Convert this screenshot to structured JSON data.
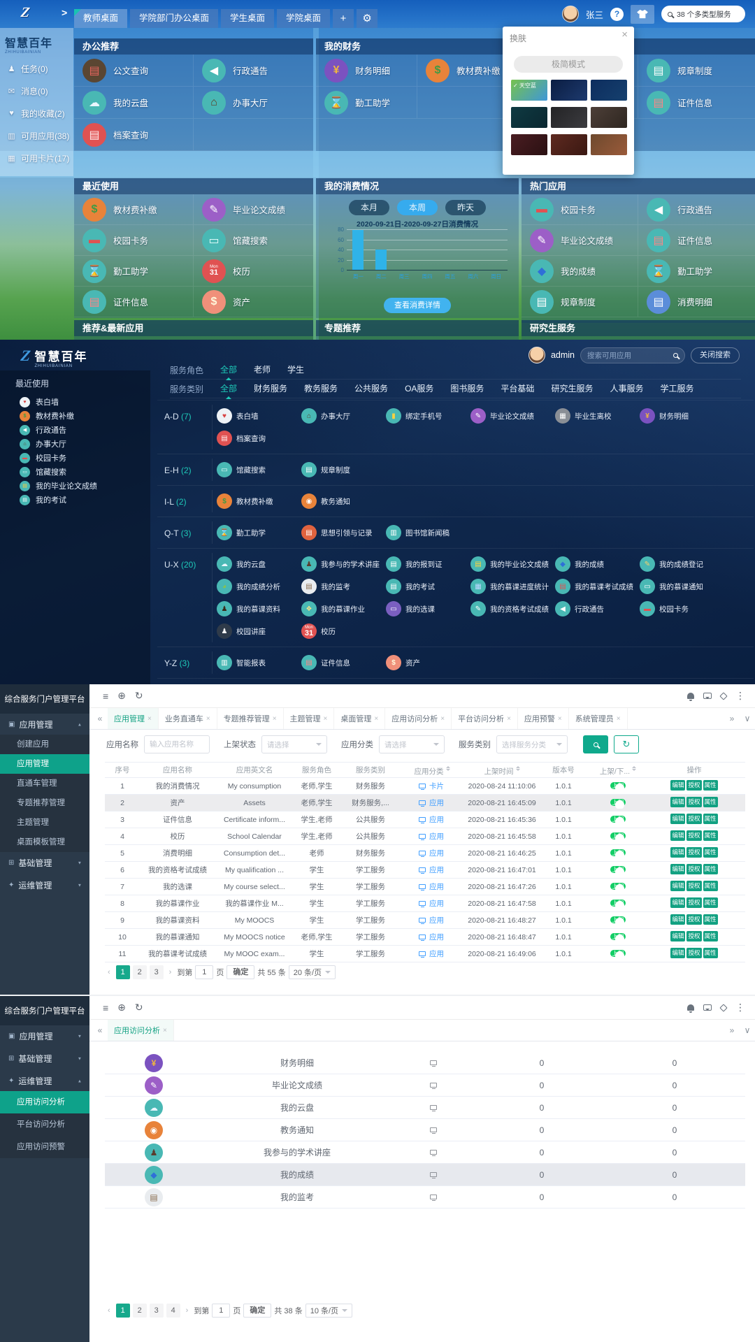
{
  "colors": {
    "accent_teal": "#19c3b2",
    "admin_green": "#12a182",
    "link_blue": "#409eff",
    "bar_blue": "#2fb3e8",
    "toggle_green": "#13ce66"
  },
  "icon_map": {
    "公文查询": {
      "bg": "#5a4632",
      "fg": "#e8655f",
      "g": "▤"
    },
    "行政通告": {
      "bg": "#49b8b4",
      "fg": "#ffffff",
      "g": "◀"
    },
    "我的云盘": {
      "bg": "#49b8b4",
      "fg": "#e9f6ff",
      "g": "☁"
    },
    "办事大厅": {
      "bg": "#49b8b4",
      "fg": "#5d3a21",
      "g": "⌂"
    },
    "档案查询": {
      "bg": "#e05252",
      "fg": "#ffecec",
      "g": "▤"
    },
    "财务明细": {
      "bg": "#7b52c0",
      "fg": "#f0b73e",
      "g": "¥"
    },
    "教材费补缴": {
      "bg": "#e8833a",
      "fg": "#3f9b44",
      "g": "$"
    },
    "勤工助学": {
      "bg": "#49b8b4",
      "fg": "#222222",
      "g": "⌛"
    },
    "规章制度": {
      "bg": "#49b8b4",
      "fg": "#ffffff",
      "g": "▤"
    },
    "证件信息": {
      "bg": "#49b8b4",
      "fg": "#ff8585",
      "g": "▤"
    },
    "毕业论文成绩": {
      "bg": "#9c5fc7",
      "fg": "#ffffff",
      "g": "✎"
    },
    "校园卡务": {
      "bg": "#49b8b4",
      "fg": "#e05252",
      "g": "▬"
    },
    "馆藏搜索": {
      "bg": "#49b8b4",
      "fg": "#eafffe",
      "g": "▭"
    },
    "校历": {
      "bg": "#e05252",
      "fg": "#ffffff",
      "g": "31",
      "sub": "Mon"
    },
    "资产": {
      "bg": "#f0907a",
      "fg": "#fff8dc",
      "g": "$"
    },
    "我的成绩": {
      "bg": "#49b8b4",
      "fg": "#2f6fd8",
      "g": "◆"
    },
    "消费明细": {
      "bg": "#5b8dd9",
      "fg": "#ffffff",
      "g": "▤"
    },
    "表白墙": {
      "bg": "#eef2f6",
      "fg": "#d84343",
      "g": "♥"
    },
    "绑定手机号": {
      "bg": "#49b8b4",
      "fg": "#ffd23e",
      "g": "▮"
    },
    "毕业生离校": {
      "bg": "#8a8f96",
      "fg": "#ffffff",
      "g": "▦"
    },
    "教务通知": {
      "bg": "#e8833a",
      "fg": "#ffffff",
      "g": "◉"
    },
    "思想引领与记录": {
      "bg": "#e0633f",
      "fg": "#ffffff",
      "g": "▤"
    },
    "图书馆新闻稿": {
      "bg": "#49b8b4",
      "fg": "#ffffff",
      "g": "▥"
    },
    "我参与的学术讲座": {
      "bg": "#49b8b4",
      "fg": "#5a3d2e",
      "g": "♟"
    },
    "我的报到证": {
      "bg": "#49b8b4",
      "fg": "#ffffff",
      "g": "▤"
    },
    "我的毕业论文成绩": {
      "bg": "#49b8b4",
      "fg": "#ffd23e",
      "g": "▤"
    },
    "我的成绩登记": {
      "bg": "#49b8b4",
      "fg": "#f5d06c",
      "g": "✎"
    },
    "我的成绩分析": {
      "bg": "#49b8b4",
      "fg": "#8bc34a",
      "g": "◕"
    },
    "我的监考": {
      "bg": "#e9ecef",
      "fg": "#8a6d4f",
      "g": "▤"
    },
    "我的考试": {
      "bg": "#49b8b4",
      "fg": "#ffffff",
      "g": "▤"
    },
    "我的慕课进度统计": {
      "bg": "#49b8b4",
      "fg": "#bcd7ff",
      "g": "▦"
    },
    "我的慕课考试成绩": {
      "bg": "#49b8b4",
      "fg": "#e05252",
      "g": "▤"
    },
    "我的慕课通知": {
      "bg": "#49b8b4",
      "fg": "#ffffff",
      "g": "▭"
    },
    "我的慕课资料": {
      "bg": "#49b8b4",
      "fg": "#3a2a1a",
      "g": "♟"
    },
    "我的慕课作业": {
      "bg": "#49b8b4",
      "fg": "#f2e28a",
      "g": "❖"
    },
    "我的选课": {
      "bg": "#7a5fc0",
      "fg": "#ffffff",
      "g": "▭"
    },
    "我的资格考试成绩": {
      "bg": "#49b8b4",
      "fg": "#ffffff",
      "g": "✎"
    },
    "校园讲座": {
      "bg": "#2f3b4a",
      "fg": "#ffffff",
      "g": "♟"
    },
    "智能报表": {
      "bg": "#49b8b4",
      "fg": "#ffffff",
      "g": "▥"
    }
  },
  "chart_data": {
    "type": "bar",
    "title": "2020-09-21日-2020-09-27日消费情况",
    "categories": [
      "周一",
      "周二",
      "周三",
      "周四",
      "周五",
      "周六",
      "周日"
    ],
    "values": [
      78,
      40,
      0,
      0,
      0,
      0,
      0
    ],
    "xlabel": "",
    "ylabel": "",
    "yticks": [
      0,
      20,
      40,
      60,
      80
    ],
    "ylim": [
      0,
      80
    ],
    "grid": true,
    "legend_position": "none",
    "bar_color": "#2fb3e8"
  },
  "s1": {
    "nav": {
      "tabs": [
        "教师桌面",
        "学院部门办公桌面",
        "学生桌面",
        "学院桌面"
      ],
      "active": 0,
      "plus": "+",
      "gear": "⚙",
      "collapse": ">"
    },
    "user_name": "张三",
    "help": "?",
    "search_text": "38 个多类型服务",
    "logo_title": "智慧百年",
    "logo_sub": "ZHIHUIBAINIAN",
    "side_items": [
      {
        "g": "♟",
        "l": "任务(0)"
      },
      {
        "g": "✉",
        "l": "消息(0)"
      },
      {
        "g": "♥",
        "l": "我的收藏(2)"
      },
      {
        "g": "▥",
        "l": "可用应用(38)"
      },
      {
        "g": "▦",
        "l": "可用卡片(17)"
      }
    ],
    "t_office": "办公推荐",
    "office": [
      "公文查询",
      "行政通告",
      "我的云盘",
      "办事大厅",
      "档案查询"
    ],
    "t_finance": "我的财务",
    "finance": [
      "财务明细",
      "教材费补缴",
      "勤工助学"
    ],
    "svc_right": [
      "规章制度",
      "证件信息"
    ],
    "t_recent": "最近使用",
    "recent": [
      "教材费补缴",
      "毕业论文成绩",
      "校园卡务",
      "馆藏搜索",
      "勤工助学",
      "校历",
      "证件信息",
      "资产"
    ],
    "t_consume": "我的消费情况",
    "consume_tabs": [
      "本月",
      "本周",
      "昨天"
    ],
    "consume_active": 1,
    "consume_btn": "查看消费详情",
    "t_hot": "热门应用",
    "hot": [
      "校园卡务",
      "行政通告",
      "毕业论文成绩",
      "证件信息",
      "我的成绩",
      "勤工助学",
      "规章制度",
      "消费明细"
    ],
    "strip": [
      "推荐&最新应用",
      "专题推荐",
      "研究生服务"
    ],
    "skin": {
      "title": "换肤",
      "close": "×",
      "mini": "极简模式",
      "check": "✓",
      "thumbs": [
        {
          "label": "天空蓝",
          "checked": true,
          "c": [
            "#76c24d",
            "#3f97d8"
          ]
        },
        {
          "c": [
            "#0b1d42",
            "#1d3a6e"
          ]
        },
        {
          "c": [
            "#0d2d5e",
            "#15406e"
          ]
        },
        {
          "c": [
            "#0f3a42",
            "#0a2730"
          ]
        },
        {
          "c": [
            "#232325",
            "#3c3c40"
          ]
        },
        {
          "c": [
            "#4d3f38",
            "#2e2620"
          ]
        },
        {
          "c": [
            "#4a1d22",
            "#2a1012"
          ]
        },
        {
          "c": [
            "#5e2a20",
            "#3a1812"
          ]
        },
        {
          "c": [
            "#6e4a2e",
            "#9a5a3a"
          ]
        }
      ]
    }
  },
  "s2": {
    "logo_title": "智慧百年",
    "logo_sub": "ZHIHUIBAINIAN",
    "user": "admin",
    "search_ph": "搜索可用应用",
    "close_btn": "关闭搜索",
    "side_title": "最近使用",
    "side_items": [
      "表白墙",
      "教材费补缴",
      "行政通告",
      "办事大厅",
      "校园卡务",
      "馆藏搜索",
      "我的毕业论文成绩",
      "我的考试"
    ],
    "role_label": "服务角色",
    "roles": [
      "全部",
      "老师",
      "学生"
    ],
    "role_active": 0,
    "cat_label": "服务类别",
    "cats": [
      "全部",
      "财务服务",
      "教务服务",
      "公共服务",
      "OA服务",
      "图书服务",
      "平台基础",
      "研究生服务",
      "人事服务",
      "学工服务"
    ],
    "cat_active": 0,
    "groups": [
      {
        "k": "A-D",
        "n": "(7)",
        "rows": [
          [
            "表白墙",
            "办事大厅",
            "绑定手机号",
            "毕业论文成绩",
            "毕业生离校",
            "财务明细"
          ],
          [
            "档案查询"
          ]
        ]
      },
      {
        "k": "E-H",
        "n": "(2)",
        "rows": [
          [
            "馆藏搜索",
            "规章制度"
          ]
        ]
      },
      {
        "k": "I-L",
        "n": "(2)",
        "rows": [
          [
            "教材费补缴",
            "教务通知"
          ]
        ]
      },
      {
        "k": "Q-T",
        "n": "(3)",
        "rows": [
          [
            "勤工助学",
            "思想引领与记录",
            "图书馆新闻稿"
          ]
        ]
      },
      {
        "k": "U-X",
        "n": "(20)",
        "rows": [
          [
            "我的云盘",
            "我参与的学术讲座",
            "我的报到证",
            "我的毕业论文成绩",
            "我的成绩",
            "我的成绩登记"
          ],
          [
            "我的成绩分析",
            "我的监考",
            "我的考试",
            "我的慕课进度统计",
            "我的慕课考试成绩",
            "我的慕课通知"
          ],
          [
            "我的慕课资料",
            "我的慕课作业",
            "我的选课",
            "我的资格考试成绩",
            "行政通告",
            "校园卡务"
          ],
          [
            "校园讲座",
            "校历"
          ]
        ]
      },
      {
        "k": "Y-Z",
        "n": "(3)",
        "rows": [
          [
            "智能报表",
            "证件信息",
            "资产"
          ]
        ]
      }
    ]
  },
  "s3": {
    "side_title": "综合服务门户管理平台",
    "menu": [
      {
        "label": "应用管理",
        "caret": "▲",
        "children": [
          "创建应用",
          "应用管理",
          "直通车管理",
          "专题推荐管理",
          "主题管理",
          "桌面模板管理"
        ],
        "active_child": 1
      },
      {
        "label": "基础管理",
        "caret": "▼"
      },
      {
        "label": "运维管理",
        "caret": "▼"
      }
    ],
    "tabs": [
      "应用管理",
      "业务直通车",
      "专题推荐管理",
      "主题管理",
      "桌面管理",
      "应用访问分析",
      "平台访问分析",
      "应用预警",
      "系统管理员"
    ],
    "tabs_active": 0,
    "f_name": "应用名称",
    "f_name_ph": "输入应用名称",
    "f_state": "上架状态",
    "f_state_ph": "请选择",
    "f_class": "应用分类",
    "f_class_ph": "请选择",
    "f_svc": "服务类别",
    "f_svc_ph": "选择服务分类",
    "headers": [
      "序号",
      "应用名称",
      "应用英文名",
      "服务角色",
      "服务类别",
      "应用分类",
      "上架时间",
      "版本号",
      "上架/下...",
      "操作"
    ],
    "sortable": [
      5,
      6,
      8
    ],
    "toggle_label": "上架",
    "actions": [
      "编辑",
      "授权",
      "属性"
    ],
    "rows": [
      {
        "n": "1",
        "name": "我的消费情况",
        "en": "My consumption",
        "role": "老师,学生",
        "cat": "财务服务",
        "cls": "卡片",
        "card": true,
        "time": "2020-08-24 11:10:06",
        "ver": "1.0.1"
      },
      {
        "n": "2",
        "name": "资产",
        "en": "Assets",
        "role": "老师,学生",
        "cat": "财务服务,...",
        "cls": "应用",
        "time": "2020-08-21 16:45:09",
        "ver": "1.0.1",
        "hl": true
      },
      {
        "n": "3",
        "name": "证件信息",
        "en": "Certificate inform...",
        "role": "学生,老师",
        "cat": "公共服务",
        "cls": "应用",
        "time": "2020-08-21 16:45:36",
        "ver": "1.0.1"
      },
      {
        "n": "4",
        "name": "校历",
        "en": "School Calendar",
        "role": "学生,老师",
        "cat": "公共服务",
        "cls": "应用",
        "time": "2020-08-21 16:45:58",
        "ver": "1.0.1"
      },
      {
        "n": "5",
        "name": "消费明细",
        "en": "Consumption det...",
        "role": "老师",
        "cat": "财务服务",
        "cls": "应用",
        "time": "2020-08-21 16:46:25",
        "ver": "1.0.1"
      },
      {
        "n": "6",
        "name": "我的资格考试成绩",
        "en": "My qualification ...",
        "role": "学生",
        "cat": "学工服务",
        "cls": "应用",
        "time": "2020-08-21 16:47:01",
        "ver": "1.0.1"
      },
      {
        "n": "7",
        "name": "我的选课",
        "en": "My course select...",
        "role": "学生",
        "cat": "学工服务",
        "cls": "应用",
        "time": "2020-08-21 16:47:26",
        "ver": "1.0.1"
      },
      {
        "n": "8",
        "name": "我的慕课作业",
        "en": "我的慕课作业 M...",
        "role": "学生",
        "cat": "学工服务",
        "cls": "应用",
        "time": "2020-08-21 16:47:58",
        "ver": "1.0.1"
      },
      {
        "n": "9",
        "name": "我的慕课资料",
        "en": "My MOOCS",
        "role": "学生",
        "cat": "学工服务",
        "cls": "应用",
        "time": "2020-08-21 16:48:27",
        "ver": "1.0.1"
      },
      {
        "n": "10",
        "name": "我的慕课通知",
        "en": "My MOOCS notice",
        "role": "老师,学生",
        "cat": "学工服务",
        "cls": "应用",
        "time": "2020-08-21 16:48:47",
        "ver": "1.0.1"
      },
      {
        "n": "11",
        "name": "我的慕课考试成绩",
        "en": "My MOOC exam...",
        "role": "学生",
        "cat": "学工服务",
        "cls": "应用",
        "time": "2020-08-21 16:49:06",
        "ver": "1.0.1"
      }
    ],
    "pg": {
      "pages": [
        "1",
        "2",
        "3"
      ],
      "active": 0,
      "prev": "‹",
      "next": "›",
      "jump": "到第",
      "jump_val": "1",
      "page_word": "页",
      "confirm": "确定",
      "total": "共 55 条",
      "size": "20 条/页"
    }
  },
  "s4": {
    "side_title": "综合服务门户管理平台",
    "menu": [
      {
        "label": "应用管理",
        "caret": "▼"
      },
      {
        "label": "基础管理",
        "caret": "▼"
      },
      {
        "label": "运维管理",
        "caret": "▲",
        "children": [
          "应用访问分析",
          "平台访问分析",
          "应用访问预警"
        ],
        "active_child": 0
      }
    ],
    "tabs": [
      "应用访问分析"
    ],
    "tabs_active": 0,
    "rows": [
      {
        "name": "财务明细",
        "c1": "0",
        "c2": "0"
      },
      {
        "name": "毕业论文成绩",
        "c1": "0",
        "c2": "0"
      },
      {
        "name": "我的云盘",
        "c1": "0",
        "c2": "0"
      },
      {
        "name": "教务通知",
        "c1": "0",
        "c2": "0"
      },
      {
        "name": "我参与的学术讲座",
        "c1": "0",
        "c2": "0"
      },
      {
        "name": "我的成绩",
        "c1": "0",
        "c2": "0",
        "hl": true
      },
      {
        "name": "我的监考",
        "c1": "0",
        "c2": "0"
      }
    ],
    "pg": {
      "pages": [
        "1",
        "2",
        "3",
        "4"
      ],
      "active": 0,
      "prev": "‹",
      "next": "›",
      "jump": "到第",
      "jump_val": "1",
      "page_word": "页",
      "confirm": "确定",
      "total": "共 38 条",
      "size": "10 条/页"
    }
  }
}
